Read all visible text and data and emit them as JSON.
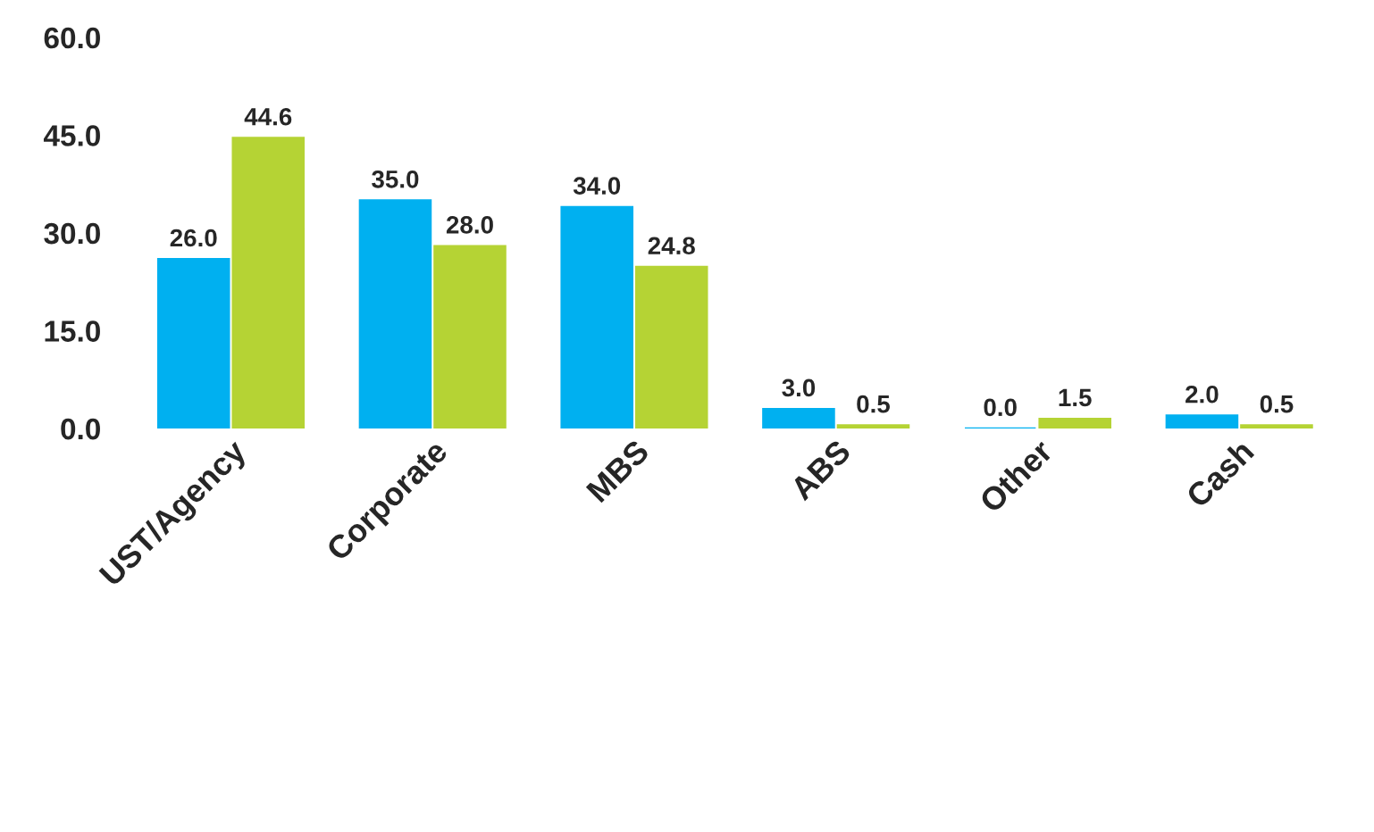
{
  "chart_data": {
    "type": "bar",
    "categories": [
      "UST/Agency",
      "Corporate",
      "MBS",
      "ABS",
      "Other",
      "Cash"
    ],
    "series": [
      {
        "color": "#00b0f0",
        "values": [
          26.0,
          35.0,
          34.0,
          3.0,
          0.0,
          2.0
        ],
        "value_labels": [
          "26.0",
          "35.0",
          "34.0",
          "3.0",
          "0.0",
          "2.0"
        ]
      },
      {
        "color": "#b5d334",
        "values": [
          44.6,
          28.0,
          24.8,
          0.5,
          1.5,
          0.5
        ],
        "value_labels": [
          "44.6",
          "28.0",
          "24.8",
          "0.5",
          "1.5",
          "0.5"
        ]
      }
    ],
    "ylim": [
      0,
      60
    ],
    "yticks": [
      {
        "value": 0,
        "label": "0.0"
      },
      {
        "value": 15,
        "label": "15.0"
      },
      {
        "value": 30,
        "label": "30.0"
      },
      {
        "value": 45,
        "label": "45.0"
      },
      {
        "value": 60,
        "label": "60.0"
      }
    ],
    "grid": false,
    "legend": false
  }
}
